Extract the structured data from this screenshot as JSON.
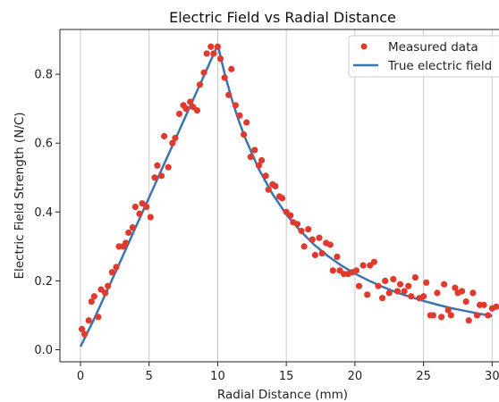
{
  "chart_data": {
    "type": "scatter",
    "title": "Electric Field vs Radial Distance",
    "xlabel": "Radial Distance (mm)",
    "ylabel": "Electric Field Strength (N/C)",
    "xlim": [
      -1.5,
      30.5
    ],
    "ylim": [
      -0.035,
      0.93
    ],
    "xticks": [
      0,
      5,
      10,
      15,
      20,
      25,
      30
    ],
    "yticks": [
      0.0,
      0.2,
      0.4,
      0.6,
      0.8
    ],
    "grid": "x-only",
    "legend": "top-right",
    "colors": {
      "measured": "#e03a2f",
      "true": "#3a75b0"
    },
    "series": [
      {
        "name": "Measured data",
        "kind": "scatter",
        "points": [
          [
            0.1,
            0.06
          ],
          [
            0.3,
            0.045
          ],
          [
            0.6,
            0.085
          ],
          [
            0.8,
            0.14
          ],
          [
            1.0,
            0.155
          ],
          [
            1.3,
            0.095
          ],
          [
            1.5,
            0.175
          ],
          [
            1.8,
            0.165
          ],
          [
            2.0,
            0.185
          ],
          [
            2.3,
            0.225
          ],
          [
            2.6,
            0.24
          ],
          [
            2.8,
            0.3
          ],
          [
            3.1,
            0.3
          ],
          [
            3.3,
            0.31
          ],
          [
            3.5,
            0.34
          ],
          [
            3.8,
            0.355
          ],
          [
            4.0,
            0.415
          ],
          [
            4.3,
            0.395
          ],
          [
            4.5,
            0.425
          ],
          [
            4.8,
            0.415
          ],
          [
            5.1,
            0.385
          ],
          [
            5.4,
            0.5
          ],
          [
            5.6,
            0.535
          ],
          [
            5.9,
            0.505
          ],
          [
            6.1,
            0.62
          ],
          [
            6.4,
            0.53
          ],
          [
            6.7,
            0.6
          ],
          [
            6.9,
            0.615
          ],
          [
            7.2,
            0.685
          ],
          [
            7.5,
            0.71
          ],
          [
            7.7,
            0.7
          ],
          [
            8.0,
            0.72
          ],
          [
            8.2,
            0.705
          ],
          [
            8.5,
            0.695
          ],
          [
            8.7,
            0.77
          ],
          [
            9.0,
            0.805
          ],
          [
            9.2,
            0.86
          ],
          [
            9.5,
            0.88
          ],
          [
            9.7,
            0.86
          ],
          [
            10.0,
            0.88
          ],
          [
            10.2,
            0.845
          ],
          [
            10.5,
            0.79
          ],
          [
            10.8,
            0.74
          ],
          [
            11.0,
            0.815
          ],
          [
            11.3,
            0.71
          ],
          [
            11.6,
            0.68
          ],
          [
            11.9,
            0.625
          ],
          [
            12.1,
            0.66
          ],
          [
            12.4,
            0.56
          ],
          [
            12.7,
            0.58
          ],
          [
            13.0,
            0.535
          ],
          [
            13.2,
            0.55
          ],
          [
            13.5,
            0.505
          ],
          [
            13.7,
            0.465
          ],
          [
            14.0,
            0.48
          ],
          [
            14.2,
            0.475
          ],
          [
            14.5,
            0.445
          ],
          [
            14.7,
            0.44
          ],
          [
            15.0,
            0.4
          ],
          [
            15.3,
            0.39
          ],
          [
            15.5,
            0.37
          ],
          [
            15.8,
            0.365
          ],
          [
            16.1,
            0.345
          ],
          [
            16.3,
            0.3
          ],
          [
            16.6,
            0.35
          ],
          [
            16.9,
            0.32
          ],
          [
            17.1,
            0.275
          ],
          [
            17.4,
            0.325
          ],
          [
            17.6,
            0.28
          ],
          [
            17.9,
            0.31
          ],
          [
            18.2,
            0.305
          ],
          [
            18.4,
            0.23
          ],
          [
            18.7,
            0.27
          ],
          [
            18.9,
            0.23
          ],
          [
            19.2,
            0.22
          ],
          [
            19.5,
            0.22
          ],
          [
            19.8,
            0.225
          ],
          [
            20.1,
            0.23
          ],
          [
            20.3,
            0.185
          ],
          [
            20.6,
            0.245
          ],
          [
            20.9,
            0.16
          ],
          [
            21.1,
            0.245
          ],
          [
            21.4,
            0.255
          ],
          [
            21.7,
            0.185
          ],
          [
            22.0,
            0.15
          ],
          [
            22.2,
            0.2
          ],
          [
            22.5,
            0.165
          ],
          [
            22.8,
            0.205
          ],
          [
            23.1,
            0.17
          ],
          [
            23.3,
            0.19
          ],
          [
            23.6,
            0.17
          ],
          [
            23.9,
            0.185
          ],
          [
            24.1,
            0.155
          ],
          [
            24.4,
            0.21
          ],
          [
            24.7,
            0.15
          ],
          [
            25.0,
            0.155
          ],
          [
            25.2,
            0.195
          ],
          [
            25.5,
            0.1
          ],
          [
            25.7,
            0.1
          ],
          [
            26.0,
            0.165
          ],
          [
            26.3,
            0.095
          ],
          [
            26.5,
            0.19
          ],
          [
            26.8,
            0.115
          ],
          [
            27.0,
            0.1
          ],
          [
            27.3,
            0.18
          ],
          [
            27.5,
            0.165
          ],
          [
            27.8,
            0.17
          ],
          [
            28.1,
            0.14
          ],
          [
            28.3,
            0.085
          ],
          [
            28.6,
            0.165
          ],
          [
            28.9,
            0.1
          ],
          [
            29.1,
            0.13
          ],
          [
            29.4,
            0.13
          ],
          [
            29.7,
            0.1
          ],
          [
            30.0,
            0.12
          ],
          [
            30.3,
            0.125
          ]
        ]
      },
      {
        "name": "True electric field",
        "kind": "line",
        "points": [
          [
            0.0,
            0.009
          ],
          [
            1,
            0.09
          ],
          [
            2,
            0.177
          ],
          [
            3,
            0.265
          ],
          [
            4,
            0.354
          ],
          [
            5,
            0.442
          ],
          [
            6,
            0.531
          ],
          [
            7,
            0.619
          ],
          [
            8,
            0.708
          ],
          [
            9,
            0.796
          ],
          [
            10,
            0.885
          ],
          [
            10.5,
            0.803
          ],
          [
            11,
            0.731
          ],
          [
            11.5,
            0.669
          ],
          [
            12,
            0.615
          ],
          [
            13,
            0.524
          ],
          [
            14,
            0.452
          ],
          [
            15,
            0.393
          ],
          [
            16,
            0.346
          ],
          [
            17,
            0.306
          ],
          [
            18,
            0.273
          ],
          [
            19,
            0.245
          ],
          [
            20,
            0.221
          ],
          [
            21,
            0.201
          ],
          [
            22,
            0.183
          ],
          [
            23,
            0.167
          ],
          [
            24,
            0.154
          ],
          [
            25,
            0.142
          ],
          [
            26,
            0.131
          ],
          [
            27,
            0.121
          ],
          [
            28,
            0.113
          ],
          [
            29,
            0.105
          ],
          [
            30,
            0.098
          ]
        ]
      }
    ]
  }
}
